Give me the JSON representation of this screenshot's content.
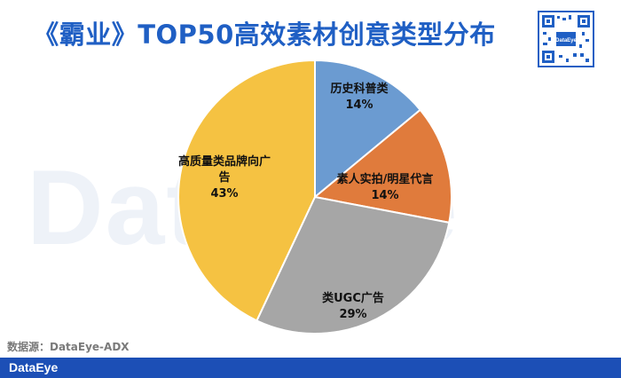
{
  "title": "《霸业》TOP50高效素材创意类型分布",
  "watermark": "DataEye",
  "source": "数据源：DataEye-ADX",
  "footer": {
    "logo": "DataEye"
  },
  "qr": {
    "center_text": "DataEye"
  },
  "chart_data": {
    "type": "pie",
    "title": "《霸业》TOP50高效素材创意类型分布",
    "start_angle_deg": 0,
    "direction": "clockwise",
    "slices": [
      {
        "label": "历史科普类",
        "value": 14,
        "pct_label": "14%",
        "color": "#6b9bd1"
      },
      {
        "label": "素人实拍/明星代言",
        "value": 14,
        "pct_label": "14%",
        "color": "#e07b3c"
      },
      {
        "label": "类UGC广告",
        "value": 29,
        "pct_label": "29%",
        "color": "#a6a6a6"
      },
      {
        "label": "高质量类品牌向广告",
        "value": 43,
        "pct_label": "43%",
        "color": "#f5c242"
      }
    ]
  }
}
